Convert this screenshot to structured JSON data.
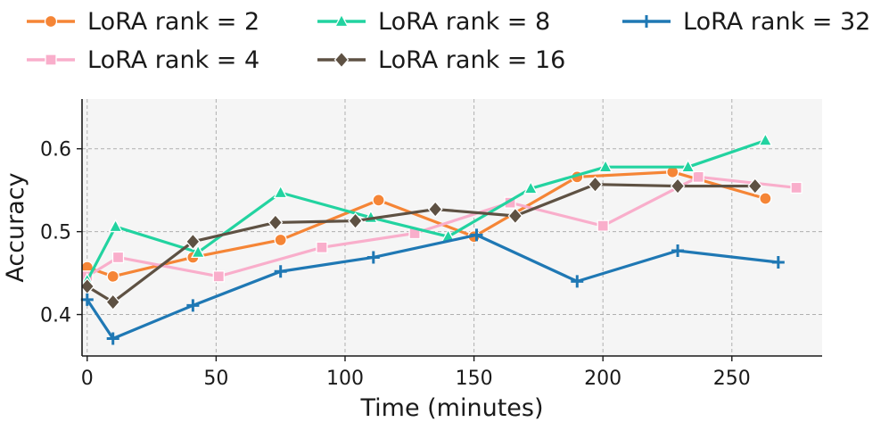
{
  "chart_data": {
    "type": "line",
    "title": "",
    "xlabel": "Time (minutes)",
    "ylabel": "Accuracy",
    "xlim": [
      -2,
      285
    ],
    "ylim": [
      0.35,
      0.66
    ],
    "xticks": [
      0,
      50,
      100,
      150,
      200,
      250
    ],
    "xtick_labels": [
      "0",
      "50",
      "100",
      "150",
      "200",
      "250"
    ],
    "yticks": [
      0.4,
      0.5,
      0.6
    ],
    "ytick_labels": [
      "0.4",
      "0.5",
      "0.6"
    ],
    "grid": true,
    "legend_position": "top",
    "series": [
      {
        "name": "LoRA rank = 2",
        "color": "#f58536",
        "marker": "circle",
        "x": [
          0,
          10,
          41,
          75,
          113,
          150,
          190,
          227,
          263
        ],
        "y": [
          0.457,
          0.446,
          0.469,
          0.49,
          0.538,
          0.494,
          0.566,
          0.572,
          0.54
        ]
      },
      {
        "name": "LoRA rank = 4",
        "color": "#f9aecb",
        "marker": "square",
        "x": [
          0,
          12,
          51,
          91,
          127,
          164,
          200,
          237,
          275
        ],
        "y": [
          0.446,
          0.469,
          0.446,
          0.481,
          0.498,
          0.535,
          0.507,
          0.566,
          0.553
        ]
      },
      {
        "name": "LoRA rank = 8",
        "color": "#22d3a0",
        "marker": "triangle",
        "x": [
          0,
          11,
          43,
          75,
          110,
          140,
          172,
          201,
          233,
          263
        ],
        "y": [
          0.441,
          0.506,
          0.475,
          0.547,
          0.517,
          0.494,
          0.552,
          0.578,
          0.578,
          0.61
        ]
      },
      {
        "name": "LoRA rank = 16",
        "color": "#5e5143",
        "marker": "diamond",
        "x": [
          0,
          10,
          41,
          73,
          104,
          135,
          166,
          197,
          229,
          259
        ],
        "y": [
          0.434,
          0.415,
          0.488,
          0.511,
          0.513,
          0.527,
          0.519,
          0.557,
          0.555,
          0.555
        ]
      },
      {
        "name": "LoRA rank = 32",
        "color": "#1f78b4",
        "marker": "plus",
        "x": [
          0,
          10,
          41,
          75,
          111,
          151,
          190,
          229,
          268
        ],
        "y": [
          0.418,
          0.371,
          0.411,
          0.452,
          0.469,
          0.496,
          0.44,
          0.477,
          0.463
        ]
      }
    ]
  }
}
